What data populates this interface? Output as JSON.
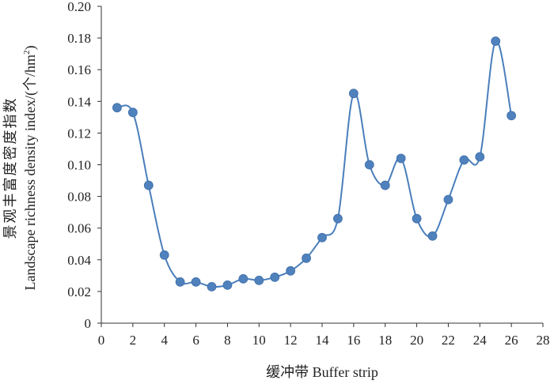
{
  "chart_data": {
    "type": "line",
    "xlabel": "缓冲带 Buffer strip",
    "ylabel_cn": "景观丰富度密度指数",
    "ylabel_en_main": "Landscape richness density index/(个/hm",
    "ylabel_en_sup": "2",
    "ylabel_en_end": ")",
    "xlim": [
      0,
      28
    ],
    "ylim": [
      0,
      0.2
    ],
    "xticks": [
      0,
      2,
      4,
      6,
      8,
      10,
      12,
      14,
      16,
      18,
      20,
      22,
      24,
      26,
      28
    ],
    "xtick_labels": [
      "0",
      "2",
      "4",
      "6",
      "8",
      "10",
      "12",
      "14",
      "16",
      "18",
      "20",
      "22",
      "24",
      "26",
      "28"
    ],
    "yticks": [
      0,
      0.02,
      0.04,
      0.06,
      0.08,
      0.1,
      0.12,
      0.14,
      0.16,
      0.18,
      0.2
    ],
    "ytick_labels": [
      "0",
      "0.02",
      "0.04",
      "0.06",
      "0.08",
      "0.10",
      "0.12",
      "0.14",
      "0.16",
      "0.18",
      "0.20"
    ],
    "grid": false,
    "smooth": true,
    "color": "#4a7ebb",
    "marker_color": "#4f81bd",
    "series": [
      {
        "x": [
          1,
          2,
          3,
          4,
          5,
          6,
          7,
          8,
          9,
          10,
          11,
          12,
          13,
          14,
          15,
          16,
          17,
          18,
          19,
          20,
          21,
          22,
          23,
          24,
          25,
          26
        ],
        "y": [
          0.136,
          0.133,
          0.087,
          0.043,
          0.026,
          0.026,
          0.023,
          0.024,
          0.028,
          0.027,
          0.029,
          0.033,
          0.041,
          0.054,
          0.066,
          0.145,
          0.1,
          0.087,
          0.104,
          0.066,
          0.055,
          0.078,
          0.103,
          0.105,
          0.178,
          0.131
        ]
      }
    ]
  }
}
